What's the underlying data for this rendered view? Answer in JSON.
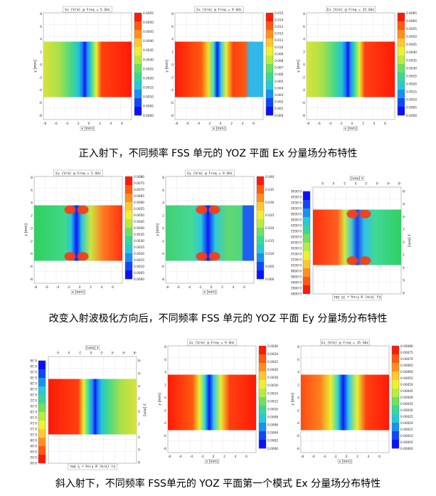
{
  "captions": [
    "正入射下，不同频率 FSS 单元的 YOZ 平面 Ex 分量场分布特性",
    "改变入射波极化方向后，不同频率 FSS 单元的 YOZ 平面 Ey 分量场分布特性",
    "斜入射下，不同频率 FSS单元的 YOZ 平面第一个模式 Ex 分量场分布特性"
  ],
  "panels": [
    {
      "title": "Ex [V/m] @ Freq = 5 GHz",
      "x_label": "x [mm]",
      "y_label": "y [mm]",
      "x_ticks": [
        "-8",
        "-6",
        "-4",
        "-2",
        "0",
        "2",
        "4",
        "6"
      ],
      "y_ticks": [
        "8",
        "6",
        "4",
        "2",
        "0",
        "-2",
        "-4",
        "-6",
        "-8"
      ],
      "colorbar": [
        "0.0055",
        "0.0050",
        "0.0045",
        "0.0040",
        "0.0035",
        "0.0030",
        "0.0025",
        "0.0020",
        "0.0015",
        "0.0010",
        "0.0005",
        "0.0000"
      ]
    },
    {
      "title": "Ex [V/m] @ Freq = 9 GHz",
      "x_label": "x [mm]",
      "y_label": "y [mm]",
      "x_ticks": [
        "-8",
        "-6",
        "-4",
        "-2",
        "0",
        "2",
        "4",
        "6"
      ],
      "y_ticks": [
        "8",
        "6",
        "4",
        "2",
        "0",
        "-2",
        "-4",
        "-6",
        "-8"
      ],
      "colorbar": [
        "0.015",
        "0.014",
        "0.013",
        "0.012",
        "0.011",
        "0.010",
        "0.009",
        "0.008",
        "0.007",
        "0.006",
        "0.005",
        "0.004",
        "0.003",
        "0.002",
        "0.001",
        "0.000"
      ]
    },
    {
      "title": "Ex [V/m] @ Freq = 15 GHz",
      "x_label": "x [mm]",
      "y_label": "y [mm]",
      "x_ticks": [
        "-8",
        "-6",
        "-4",
        "-2",
        "0",
        "2",
        "4",
        "6"
      ],
      "y_ticks": [
        "8",
        "6",
        "4",
        "2",
        "0",
        "-2",
        "-4",
        "-6",
        "-8"
      ],
      "colorbar": [
        "0.0065",
        "0.0060",
        "0.0055",
        "0.0050",
        "0.0045",
        "0.0040",
        "0.0035",
        "0.0030",
        "0.0025",
        "0.0020",
        "0.0015",
        "0.0010",
        "0.0005",
        "0.0000"
      ]
    },
    {
      "title": "Ey [V/m] @ Freq = 5 GHz",
      "x_label": "x [mm]",
      "y_label": "y [mm]",
      "x_ticks": [
        "-8",
        "-6",
        "-4",
        "-2",
        "0",
        "2",
        "4",
        "6"
      ],
      "y_ticks": [
        "8",
        "6",
        "4",
        "2",
        "0",
        "-2",
        "-4",
        "-6",
        "-8"
      ],
      "colorbar": [
        "0.0080",
        "0.0075",
        "0.0070",
        "0.0065",
        "0.0060",
        "0.0055",
        "0.0050",
        "0.0045",
        "0.0040",
        "0.0035",
        "0.0030",
        "0.0025",
        "0.0020",
        "0.0015",
        "0.0010",
        "0.0005",
        "0.0000"
      ]
    },
    {
      "title": "Ey [V/m] @ Freq = 9 GHz",
      "x_label": "x [mm]",
      "y_label": "y [mm]",
      "x_ticks": [
        "-8",
        "-6",
        "-4",
        "-2",
        "0",
        "2",
        "4",
        "6"
      ],
      "y_ticks": [
        "8",
        "6",
        "4",
        "2",
        "0",
        "-2",
        "-4",
        "-6",
        "-8"
      ],
      "colorbar": [
        "0.040",
        "0.035",
        "0.030",
        "0.025",
        "0.020",
        "0.015",
        "0.010",
        "0.005",
        "0.000"
      ]
    },
    {
      "title": "Ey [V/m] @ Freq = 15 GHz",
      "x_label": "x [mm]",
      "y_label": "y [mm]",
      "x_ticks": [
        "-8",
        "-6",
        "-4",
        "-2",
        "0",
        "2",
        "4",
        "6"
      ],
      "y_ticks": [
        "8",
        "6",
        "4",
        "2",
        "0",
        "-2",
        "-4",
        "-6",
        "-8"
      ],
      "colorbar": [
        "0.0000",
        "0.0002",
        "0.0004",
        "0.0006",
        "0.0008",
        "0.0010",
        "0.0012",
        "0.0014",
        "0.0016",
        "0.0018",
        "0.0020",
        "0.0022",
        "0.0024",
        "0.0026",
        "0.0028",
        "0.0030",
        "0.0032",
        "0.0034",
        "0.0036"
      ]
    },
    {
      "title": "Ex [V/m] @ Freq = 5 GHz",
      "x_label": "x [mm]",
      "y_label": "y [mm]",
      "x_ticks": [
        "-8",
        "-6",
        "-4",
        "-2",
        "0",
        "2",
        "4",
        "6"
      ],
      "y_ticks": [
        "8",
        "6",
        "4",
        "2",
        "0",
        "-2",
        "-4",
        "-6",
        "-8"
      ],
      "colorbar": [
        "0.00",
        "0.02",
        "0.04",
        "0.06",
        "0.08",
        "0.10",
        "0.12",
        "0.14",
        "0.16",
        "0.18",
        "0.20",
        "0.22",
        "0.24",
        "0.26",
        "0.28",
        "0.30",
        "0.32",
        "0.34",
        "0.36"
      ]
    },
    {
      "title": "Ex [V/m] @ Freq = 9 GHz",
      "x_label": "x [mm]",
      "y_label": "y [mm]",
      "x_ticks": [
        "-8",
        "-6",
        "-4",
        "-2",
        "0",
        "2",
        "4",
        "6"
      ],
      "y_ticks": [
        "8",
        "6",
        "4",
        "2",
        "0",
        "-2",
        "-4",
        "-6",
        "-8"
      ],
      "colorbar": [
        "0.0026",
        "0.0024",
        "0.0022",
        "0.0020",
        "0.0018",
        "0.0016",
        "0.0014",
        "0.0012",
        "0.0010",
        "0.0008",
        "0.0006",
        "0.0004",
        "0.0002",
        "0.0000"
      ]
    },
    {
      "title": "Ex [V/m] @ Freq = 15 GHz",
      "x_label": "x [mm]",
      "y_label": "y [mm]",
      "x_ticks": [
        "-8",
        "-6",
        "-4",
        "-2",
        "0",
        "2",
        "4",
        "6"
      ],
      "y_ticks": [
        "8",
        "6",
        "4",
        "2",
        "0",
        "-2",
        "-4",
        "-6",
        "-8"
      ],
      "colorbar": [
        "0.00080",
        "0.00075",
        "0.00070",
        "0.00065",
        "0.00060",
        "0.00055",
        "0.00050",
        "0.00045",
        "0.00040",
        "0.00035",
        "0.00030",
        "0.00025",
        "0.00020",
        "0.00015",
        "0.00010",
        "0.00005",
        "0.00000"
      ]
    }
  ]
}
